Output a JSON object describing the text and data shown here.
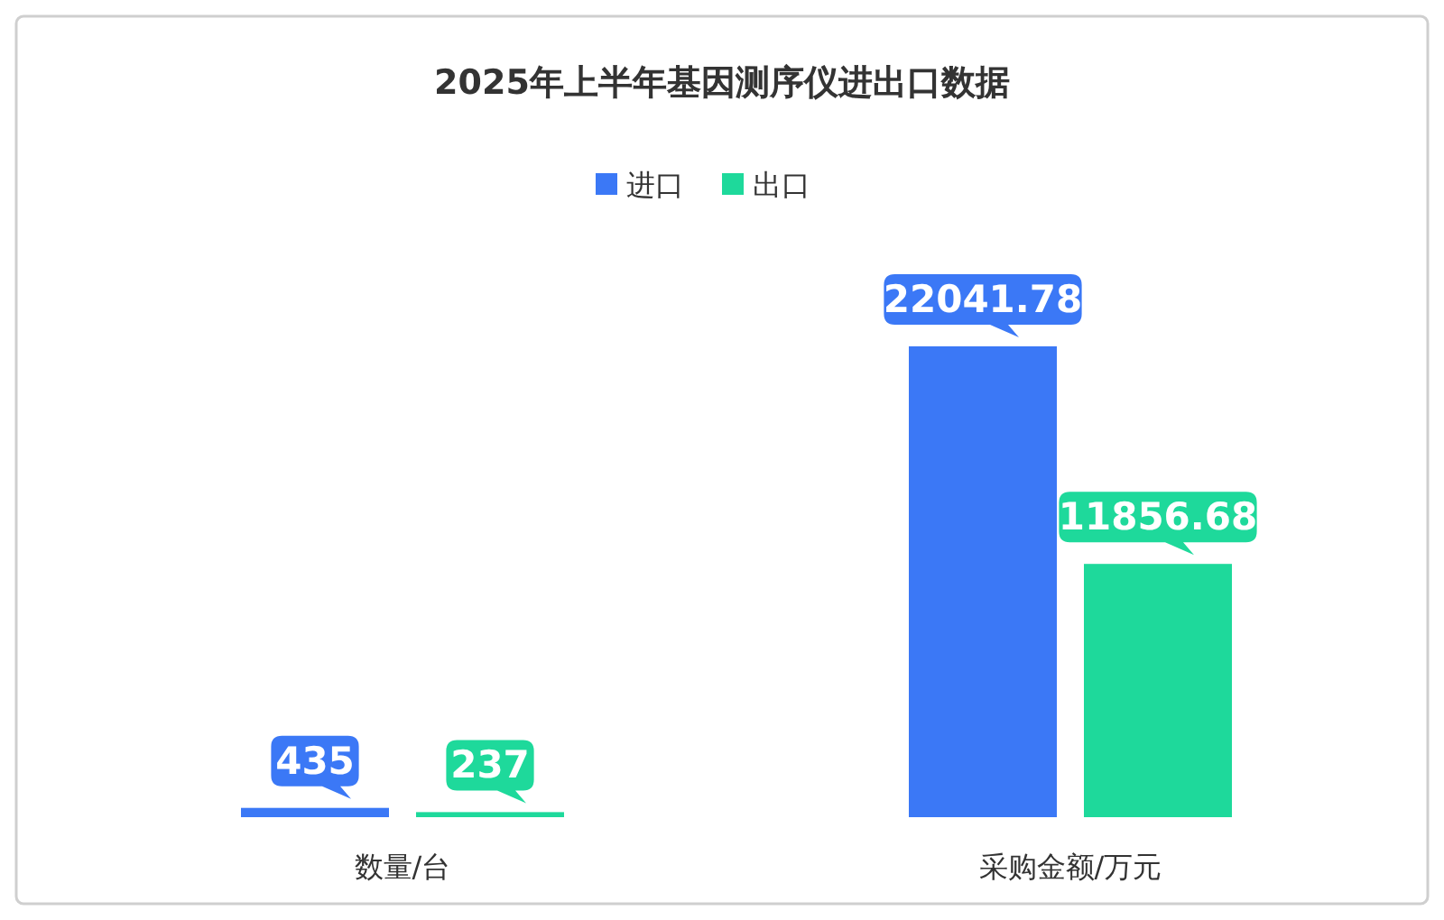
{
  "chart_data": {
    "type": "bar",
    "title": "2025年上半年基因测序仪进出口数据",
    "categories": [
      "数量/台",
      "采购金额/万元"
    ],
    "series": [
      {
        "name": "进口",
        "color": "#3b78f6",
        "values": [
          435,
          22041.78
        ]
      },
      {
        "name": "出口",
        "color": "#1ed99b",
        "values": [
          237,
          11856.68
        ]
      }
    ],
    "data_labels": true,
    "legend": "top",
    "grid": false
  }
}
